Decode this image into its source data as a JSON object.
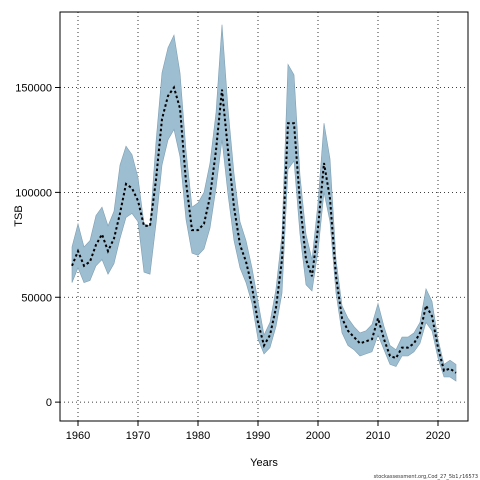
{
  "chart_data": {
    "type": "line",
    "xlabel": "Years",
    "ylabel": "TSB",
    "xlim": [
      1957,
      2025
    ],
    "ylim": [
      -9000,
      186000
    ],
    "x_ticks": [
      1960,
      1970,
      1980,
      1990,
      2000,
      2010,
      2020
    ],
    "y_ticks": [
      0,
      50000,
      100000,
      150000
    ],
    "grid": true,
    "line_style": "dotted",
    "colors": {
      "band": "#9dbdd1",
      "band_edge": "#7f9fb3",
      "line": "#000000",
      "grid": "#000000"
    },
    "series": [
      {
        "x": [
          1959,
          1960,
          1961,
          1962,
          1963,
          1964,
          1965,
          1966,
          1967,
          1968,
          1969,
          1970,
          1971,
          1972,
          1973,
          1974,
          1975,
          1976,
          1977,
          1978,
          1979,
          1980,
          1981,
          1982,
          1983,
          1984,
          1985,
          1986,
          1987,
          1988,
          1989,
          1990,
          1991,
          1992,
          1993,
          1994,
          1995,
          1996,
          1997,
          1998,
          1999,
          2000,
          2001,
          2002,
          2003,
          2004,
          2005,
          2006,
          2007,
          2008,
          2009,
          2010,
          2011,
          2012,
          2013,
          2014,
          2015,
          2016,
          2017,
          2018,
          2019,
          2020,
          2021,
          2022,
          2023
        ],
        "values": [
          65000,
          72000,
          65000,
          67000,
          75000,
          80000,
          72000,
          78000,
          90000,
          104000,
          102000,
          96000,
          84000,
          84000,
          106000,
          135000,
          146000,
          150000,
          140000,
          105000,
          82000,
          82000,
          85000,
          98000,
          120000,
          149000,
          120000,
          93000,
          75000,
          67000,
          55000,
          38000,
          27000,
          32000,
          45000,
          68000,
          133000,
          133000,
          95000,
          68000,
          60000,
          83000,
          114000,
          97000,
          60000,
          40000,
          34000,
          31000,
          28000,
          29000,
          30000,
          40000,
          30000,
          22000,
          21000,
          26000,
          26000,
          28000,
          33000,
          46000,
          41000,
          26000,
          15000,
          16000,
          14000
        ],
        "lower": [
          57000,
          64000,
          57000,
          58000,
          65000,
          68000,
          61000,
          66000,
          78000,
          88000,
          90000,
          86000,
          62000,
          61000,
          85000,
          113000,
          125000,
          130000,
          117000,
          87000,
          71000,
          70000,
          73000,
          83000,
          102000,
          125000,
          99000,
          77000,
          64000,
          57000,
          47000,
          30000,
          23000,
          26000,
          36000,
          52000,
          111000,
          115000,
          80000,
          56000,
          53000,
          72000,
          100000,
          86000,
          52000,
          33000,
          27000,
          25000,
          22000,
          23000,
          24000,
          32000,
          25000,
          18000,
          17000,
          22000,
          22000,
          24000,
          28000,
          38000,
          34000,
          21000,
          12000,
          12000,
          10000
        ],
        "upper": [
          74000,
          85000,
          74000,
          77000,
          89000,
          93000,
          84000,
          91000,
          113000,
          122000,
          118000,
          107000,
          85000,
          84000,
          124000,
          157000,
          169000,
          175000,
          157000,
          120000,
          93000,
          95000,
          100000,
          114000,
          138000,
          180000,
          140000,
          109000,
          86000,
          77000,
          64000,
          48000,
          32000,
          38000,
          54000,
          80000,
          161000,
          156000,
          108000,
          80000,
          68000,
          95000,
          133000,
          116000,
          68000,
          46000,
          40000,
          36000,
          33000,
          34000,
          37000,
          47000,
          36000,
          27000,
          25000,
          31000,
          31000,
          33000,
          38000,
          54000,
          48000,
          30000,
          18000,
          20000,
          18000
        ]
      }
    ]
  },
  "footer": {
    "source_note": "stockassessment.org,Cod_27_5b1,r16573"
  }
}
